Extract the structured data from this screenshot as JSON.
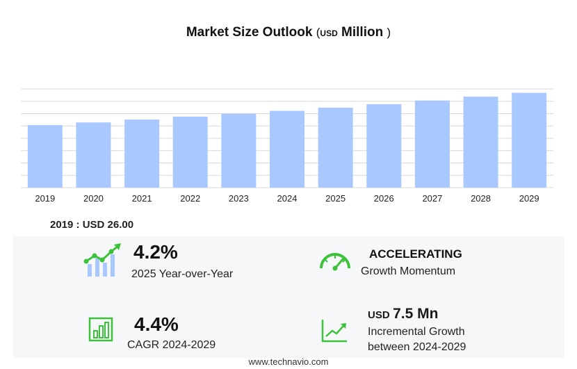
{
  "title": {
    "main": "Market Size Outlook",
    "paren_open": "(",
    "unit_small": "USD",
    "unit_main": "Million",
    "paren_close": ")"
  },
  "chart_data": {
    "type": "bar",
    "categories": [
      "2019",
      "2020",
      "2021",
      "2022",
      "2023",
      "2024",
      "2025",
      "2026",
      "2027",
      "2028",
      "2029"
    ],
    "values": [
      26.0,
      27.1,
      28.3,
      29.5,
      30.7,
      31.9,
      33.2,
      34.7,
      36.2,
      37.8,
      39.4
    ],
    "bar_color": "#a9c8ff",
    "grid": true,
    "ylim": [
      0,
      41
    ]
  },
  "base": {
    "label": "2019 : USD",
    "value": "26.00"
  },
  "stats": {
    "yoy": {
      "value": "4.2%",
      "label": "2025 Year-over-Year",
      "icon": "growth-chart-icon"
    },
    "momentum": {
      "value": "ACCELERATING",
      "label": "Growth Momentum",
      "icon": "speedometer-icon"
    },
    "cagr": {
      "value": "4.4%",
      "label": "CAGR 2024-2029",
      "icon": "bar-chart-icon"
    },
    "incremental": {
      "prefix": "USD",
      "value": "7.5 Mn",
      "label_line1": "Incremental Growth",
      "label_line2": "between 2024-2029",
      "icon": "trend-up-icon"
    }
  },
  "colors": {
    "accent_green": "#3cc13b",
    "bar": "#a9c8ff",
    "grid": "#d9d9d9"
  },
  "footer": "www.technavio.com"
}
